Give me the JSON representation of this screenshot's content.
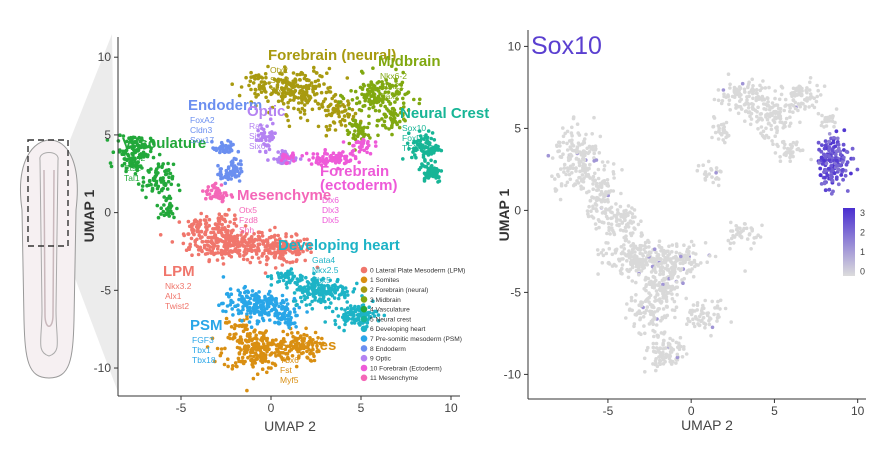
{
  "chart_data": [
    {
      "type": "scatter",
      "xlabel": "UMAP 2",
      "ylabel": "UMAP 1",
      "xlim": [
        -8.5,
        10.5
      ],
      "ylim": [
        -11.8,
        11.3
      ],
      "xticks": [
        "-5",
        "0",
        "5",
        "10"
      ],
      "yticks": [
        "10",
        "5",
        "0",
        "-5",
        "-10"
      ],
      "legend_placement": "bottom-right",
      "clusters": [
        {
          "id": 0,
          "legend": "0 Lateral Plate Mesoderm (LPM)",
          "title": "LPM",
          "genes": [
            "Nkx3.2",
            "Alx1",
            "Twist2"
          ],
          "color": "#f0766c",
          "center": [
            -2.2,
            -2.2
          ]
        },
        {
          "id": 1,
          "legend": "1 Somites",
          "title": "Somites",
          "genes": [
            "Tbx6",
            "Fst",
            "Myf5"
          ],
          "color": "#d98f12",
          "center": [
            -0.6,
            -8.8
          ]
        },
        {
          "id": 2,
          "legend": "2 Forebrain (neural)",
          "title": "Forebrain (neural)",
          "genes": [
            "Otx2",
            "Sox2",
            "Six3"
          ],
          "color": "#a89a10",
          "center": [
            2.3,
            7.7
          ]
        },
        {
          "id": 3,
          "legend": "3 Midbrain",
          "title": "Midbrain",
          "genes": [
            "Nkx6-2",
            "Sox21",
            "Pax2"
          ],
          "color": "#80a810",
          "center": [
            6.3,
            7.2
          ]
        },
        {
          "id": 4,
          "legend": "4 Vasculature",
          "title": "Vasculature",
          "genes": [
            "Lmo2",
            "Ets2",
            "Tal1"
          ],
          "color": "#22a83a",
          "center": [
            -7.2,
            3.4
          ]
        },
        {
          "id": 5,
          "legend": "5 Neural crest",
          "title": "Neural Crest",
          "genes": [
            "Sox10",
            "FoxD3",
            "TFAP2B"
          ],
          "color": "#17b596",
          "center": [
            8.4,
            3.0
          ]
        },
        {
          "id": 6,
          "legend": "6 Developing heart",
          "title": "Developing heart",
          "genes": [
            "Gata4",
            "Nkx2.5",
            "Tbx5"
          ],
          "color": "#1db3c6",
          "center": [
            2.5,
            -5.8
          ]
        },
        {
          "id": 7,
          "legend": "7 Pre-somitic mesoderm (PSM)",
          "title": "PSM",
          "genes": [
            "FGF3",
            "Tbx1",
            "Tbx18"
          ],
          "color": "#29a6e8",
          "center": [
            -1.0,
            -5.7
          ]
        },
        {
          "id": 8,
          "legend": "8 Endoderm",
          "title": "Endoderm",
          "genes": [
            "FoxA2",
            "Cldn3",
            "Sox17"
          ],
          "color": "#6b8ff0",
          "center": [
            -2.7,
            4.0
          ]
        },
        {
          "id": 9,
          "legend": "9 Optic",
          "title": "Optic",
          "genes": [
            "Rax",
            "Six3",
            "Six6"
          ],
          "color": "#b483f2",
          "center": [
            0.3,
            4.7
          ]
        },
        {
          "id": 10,
          "legend": "10 Forebrain (Ectoderm)",
          "title": "Forebrain (ectoderm)",
          "genes": [
            "Dlx6",
            "Dlx3",
            "Dlx5"
          ],
          "color": "#ee5ad8",
          "center": [
            3.4,
            3.2
          ]
        },
        {
          "id": 11,
          "legend": "11 Mesenchyme",
          "title": "Mesenchyme",
          "genes": [
            "Otx5",
            "Fzd8",
            "Shh"
          ],
          "color": "#f467b8",
          "center": [
            -2.8,
            1.5
          ]
        }
      ]
    },
    {
      "type": "scatter",
      "title": "Sox10",
      "xlabel": "UMAP 2",
      "ylabel": "UMAP 1",
      "xlim": [
        -9.8,
        10.5
      ],
      "ylim": [
        -11.5,
        11.0
      ],
      "xticks": [
        "-5",
        "0",
        "5",
        "10"
      ],
      "yticks": [
        "10",
        "5",
        "0",
        "-5",
        "-10"
      ],
      "colorbar": {
        "ticks": [
          "3",
          "2",
          "1",
          "0"
        ],
        "low_color": "#d9d9d9",
        "high_color": "#4a2fd0"
      },
      "highlight": "Neural crest (high Sox10 expression)"
    }
  ]
}
